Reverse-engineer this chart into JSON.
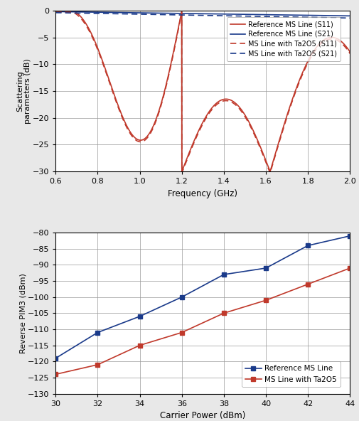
{
  "top_chart": {
    "xlabel": "Frequency (GHz)",
    "ylabel": "Scattering\nparameters (dB)",
    "xlim": [
      0.6,
      2.0
    ],
    "ylim": [
      -30,
      0
    ],
    "xticks": [
      0.6,
      0.8,
      1.0,
      1.2,
      1.4,
      1.6,
      1.8,
      2.0
    ],
    "yticks": [
      0,
      -5,
      -10,
      -15,
      -20,
      -25,
      -30
    ],
    "ref_s11_color": "#c0392b",
    "ref_s21_color": "#1a3a8a",
    "ta2o5_s11_color": "#c0392b",
    "ta2o5_s21_color": "#1a3a8a",
    "legend_labels": [
      "Reference MS Line (S11)",
      "Reference MS Line (S21)",
      "MS Line with Ta2O5 (S11)",
      "MS Line with Ta2O5 (S21)"
    ]
  },
  "bottom_chart": {
    "xlabel": "Carrier Power (dBm)",
    "ylabel": "Reverse PIM3 (dBm)",
    "xlim": [
      30,
      44
    ],
    "ylim": [
      -130,
      -80
    ],
    "xticks": [
      30,
      32,
      34,
      36,
      38,
      40,
      42,
      44
    ],
    "yticks": [
      -80,
      -85,
      -90,
      -95,
      -100,
      -105,
      -110,
      -115,
      -120,
      -125,
      -130
    ],
    "ref_color": "#1a3a8a",
    "ta2o5_color": "#c0392b",
    "carrier_power": [
      30,
      32,
      34,
      36,
      38,
      40,
      42,
      44
    ],
    "ref_pim3": [
      -119,
      -111,
      -106,
      -100,
      -93,
      -91,
      -84,
      -81
    ],
    "ta2o5_pim3": [
      -124,
      -121,
      -115,
      -111,
      -105,
      -101,
      -96,
      -91
    ],
    "legend_labels": [
      "Reference MS Line",
      "MS Line with Ta2O5"
    ]
  }
}
